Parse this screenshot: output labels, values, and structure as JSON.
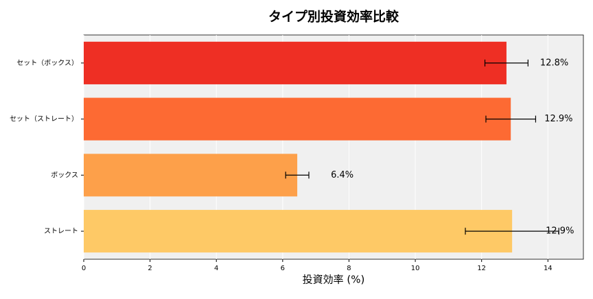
{
  "chart_data": {
    "type": "barh",
    "title": "タイプ別投資効率比較",
    "xlabel": "投資効率 (%)",
    "categories": [
      "セット（ボックス）",
      "セット（ストレート）",
      "ボックス",
      "ストレート"
    ],
    "values": [
      12.75,
      12.88,
      6.44,
      12.92
    ],
    "errors": [
      0.65,
      0.75,
      0.35,
      1.41
    ],
    "value_labels": [
      "12.8%",
      "12.9%",
      "6.4%",
      "12.9%"
    ],
    "colors": [
      "#ee2f24",
      "#fd6a33",
      "#fda04a",
      "#fec966"
    ],
    "xlim": [
      0,
      15.07
    ],
    "xticks": [
      0,
      2,
      4,
      6,
      8,
      10,
      12,
      14
    ],
    "grid": true
  }
}
